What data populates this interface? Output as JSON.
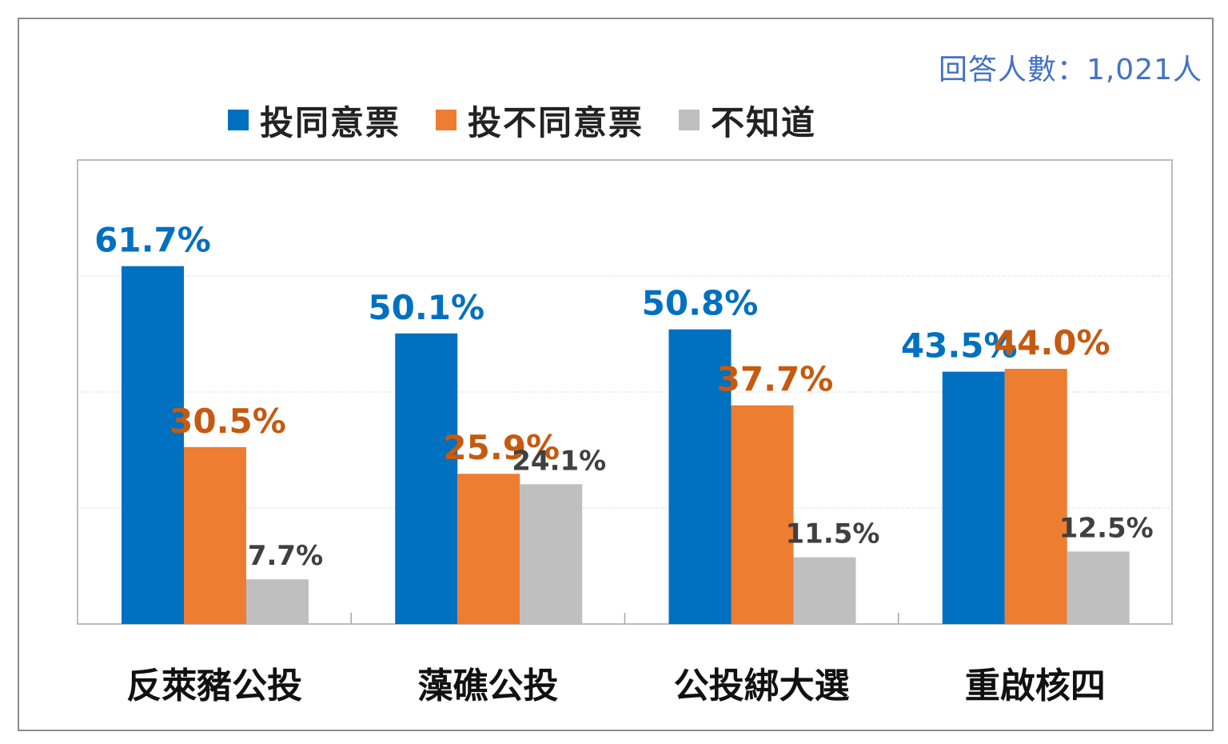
{
  "respondents_label": "回答人數：1,021人",
  "colors": {
    "agree": "#0070c0",
    "disagree": "#ed7d31",
    "unknown": "#bfbfbf",
    "accent_text": "#4472c4"
  },
  "chart_data": {
    "type": "bar",
    "categories": [
      "反萊豬公投",
      "藻礁公投",
      "公投綁大選",
      "重啟核四"
    ],
    "series": [
      {
        "name": "投同意票",
        "color": "#0070c0",
        "values": [
          61.7,
          50.1,
          50.8,
          43.5
        ],
        "labels": [
          "61.7%",
          "50.1%",
          "50.8%",
          "43.5%"
        ]
      },
      {
        "name": "投不同意票",
        "color": "#ed7d31",
        "values": [
          30.5,
          25.9,
          37.7,
          44.0
        ],
        "labels": [
          "30.5%",
          "25.9%",
          "37.7%",
          "44.0%"
        ]
      },
      {
        "name": "不知道",
        "color": "#bfbfbf",
        "values": [
          7.7,
          24.1,
          11.5,
          12.5
        ],
        "labels": [
          "7.7%",
          "24.1%",
          "11.5%",
          "12.5%"
        ]
      }
    ],
    "ylim": [
      0,
      80
    ],
    "grid": true,
    "legend": "top"
  }
}
